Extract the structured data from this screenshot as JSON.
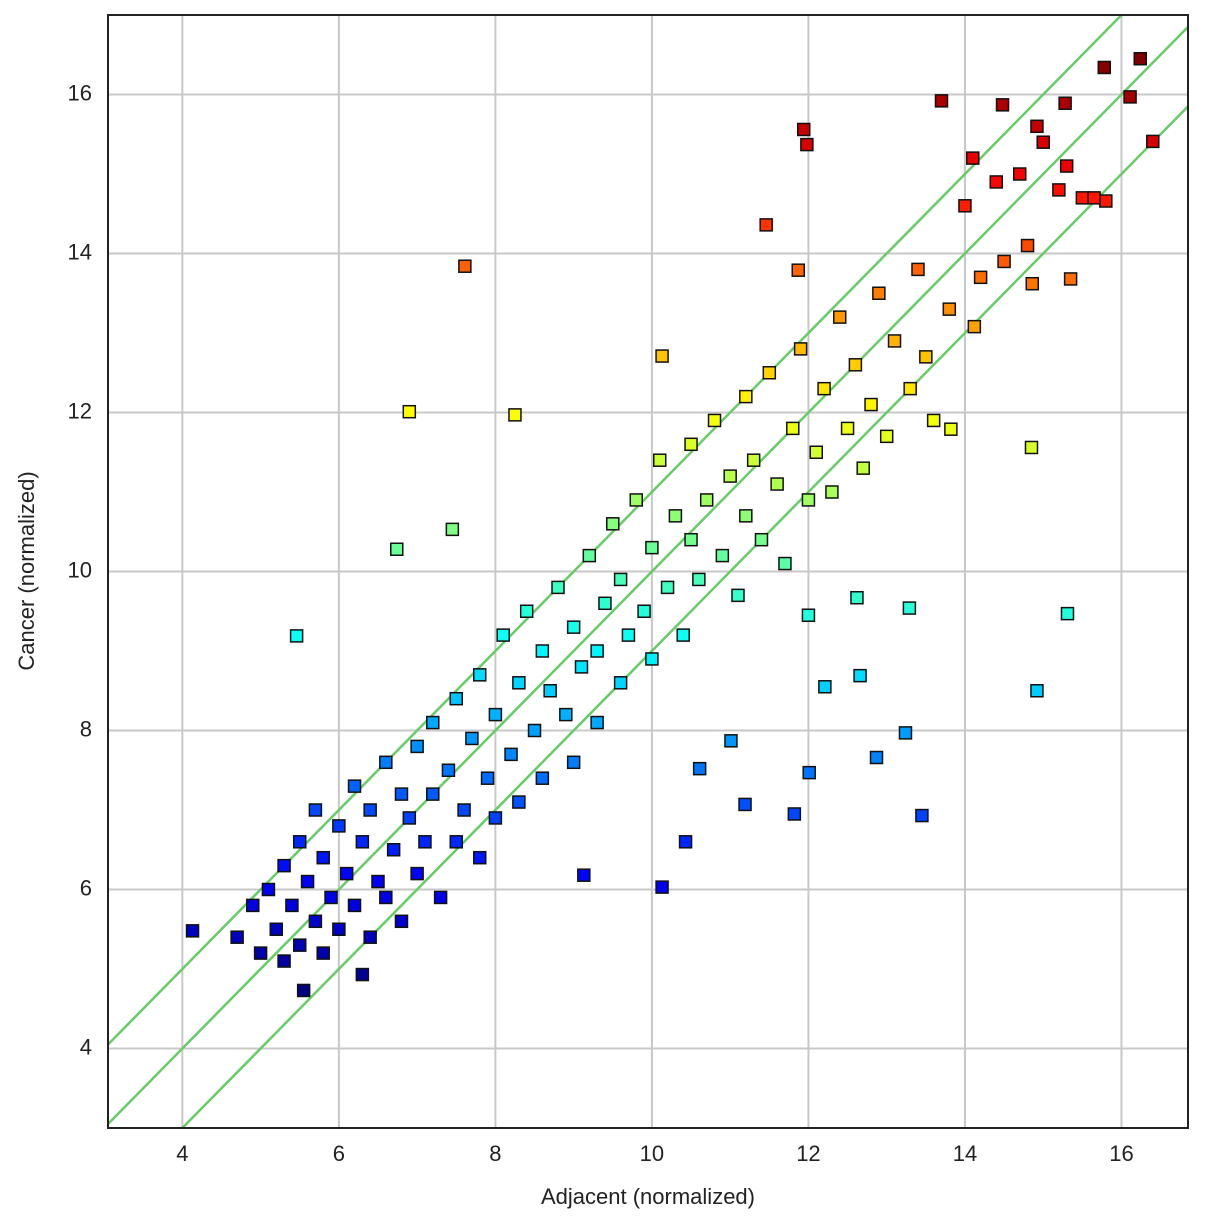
{
  "chart_data": {
    "type": "scatter",
    "x_label": "Adjacent (normalized)",
    "y_label": "Cancer (normalized)",
    "xlim": [
      3.05,
      16.85
    ],
    "ylim": [
      3,
      17
    ],
    "xticks": [
      4,
      6,
      8,
      10,
      12,
      14,
      16
    ],
    "yticks": [
      4,
      6,
      8,
      10,
      12,
      14,
      16
    ],
    "grid": true,
    "colormap": "jet",
    "clim": [
      4.7,
      16.4
    ],
    "reference_lines": [
      {
        "slope": 1,
        "intercept": 1,
        "color": "#66cc66"
      },
      {
        "slope": 1,
        "intercept": 0,
        "color": "#66cc66"
      },
      {
        "slope": 1,
        "intercept": -1,
        "color": "#66cc66"
      }
    ],
    "x": [
      4.7,
      4.9,
      5.0,
      5.1,
      5.2,
      5.3,
      5.3,
      5.4,
      5.5,
      5.5,
      5.6,
      5.7,
      5.7,
      5.8,
      5.8,
      5.9,
      6.0,
      6.0,
      6.1,
      6.2,
      6.2,
      6.3,
      6.4,
      6.4,
      6.5,
      6.6,
      6.6,
      6.7,
      6.8,
      6.8,
      6.9,
      7.0,
      7.0,
      7.1,
      7.2,
      7.2,
      7.3,
      7.4,
      7.5,
      7.5,
      7.6,
      7.7,
      7.8,
      7.8,
      7.9,
      8.0,
      8.0,
      8.1,
      8.2,
      8.3,
      8.3,
      8.4,
      8.5,
      8.6,
      8.6,
      8.7,
      8.8,
      8.9,
      9.0,
      9.0,
      9.1,
      9.2,
      9.3,
      9.3,
      9.4,
      9.5,
      9.6,
      9.6,
      9.7,
      9.8,
      9.9,
      10.0,
      10.0,
      10.1,
      10.2,
      10.3,
      10.4,
      10.5,
      10.5,
      10.6,
      10.7,
      10.8,
      10.9,
      11.0,
      11.1,
      11.2,
      11.2,
      11.3,
      11.4,
      11.5,
      11.6,
      11.7,
      11.8,
      11.9,
      12.0,
      12.1,
      12.2,
      12.3,
      12.4,
      12.5,
      12.6,
      12.7,
      12.8,
      12.9,
      13.0,
      13.1,
      13.3,
      13.4,
      13.5,
      13.6,
      13.8,
      14.0,
      14.1,
      14.2,
      14.4,
      14.5,
      14.7,
      14.8,
      15.0,
      15.2,
      15.3,
      15.5,
      7.61,
      6.9,
      8.25,
      6.74,
      5.46,
      7.45,
      11.94,
      11.98,
      13.7,
      14.48,
      15.78,
      16.24,
      16.11,
      16.4,
      15.28,
      14.92,
      15.31,
      14.92,
      14.85,
      13.82,
      13.29,
      12.62,
      12.0,
      12.21,
      12.66,
      13.24,
      12.87,
      13.45,
      12.01,
      11.82,
      11.19,
      11.01,
      10.61,
      10.43,
      10.13,
      9.13,
      6.3,
      4.13,
      5.55,
      11.46,
      11.87,
      10.13,
      15.35,
      14.86,
      15.8,
      15.65,
      14.12
    ],
    "y": [
      5.4,
      5.8,
      5.2,
      6.0,
      5.5,
      6.3,
      5.1,
      5.8,
      6.6,
      5.3,
      6.1,
      5.6,
      7.0,
      6.4,
      5.2,
      5.9,
      6.8,
      5.5,
      6.2,
      7.3,
      5.8,
      6.6,
      5.4,
      7.0,
      6.1,
      7.6,
      5.9,
      6.5,
      7.2,
      5.6,
      6.9,
      7.8,
      6.2,
      6.6,
      8.1,
      7.2,
      5.9,
      7.5,
      6.6,
      8.4,
      7.0,
      7.9,
      6.4,
      8.7,
      7.4,
      8.2,
      6.9,
      9.2,
      7.7,
      8.6,
      7.1,
      9.5,
      8.0,
      9.0,
      7.4,
      8.5,
      9.8,
      8.2,
      9.3,
      7.6,
      8.8,
      10.2,
      9.0,
      8.1,
      9.6,
      10.6,
      8.6,
      9.9,
      9.2,
      10.9,
      9.5,
      8.9,
      10.3,
      11.4,
      9.8,
      10.7,
      9.2,
      10.4,
      11.6,
      9.9,
      10.9,
      11.9,
      10.2,
      11.2,
      9.7,
      10.7,
      12.2,
      11.4,
      10.4,
      12.5,
      11.1,
      10.1,
      11.8,
      12.8,
      10.9,
      11.5,
      12.3,
      11.0,
      13.2,
      11.8,
      12.6,
      11.3,
      12.1,
      13.5,
      11.7,
      12.9,
      12.3,
      13.8,
      12.7,
      11.9,
      13.3,
      14.6,
      15.2,
      13.7,
      14.9,
      13.9,
      15.0,
      14.1,
      15.4,
      14.8,
      15.1,
      14.7,
      13.84,
      12.01,
      11.97,
      10.28,
      9.19,
      10.53,
      15.56,
      15.37,
      15.92,
      15.87,
      16.34,
      16.45,
      15.97,
      15.41,
      15.89,
      15.6,
      9.47,
      8.5,
      11.56,
      11.79,
      9.54,
      9.67,
      9.45,
      8.55,
      8.69,
      7.97,
      7.66,
      6.93,
      7.47,
      6.95,
      7.07,
      7.87,
      7.52,
      6.6,
      6.03,
      6.18,
      4.93,
      5.48,
      4.73,
      14.36,
      13.79,
      12.71,
      13.68,
      13.62,
      14.66,
      14.7,
      13.08
    ]
  }
}
